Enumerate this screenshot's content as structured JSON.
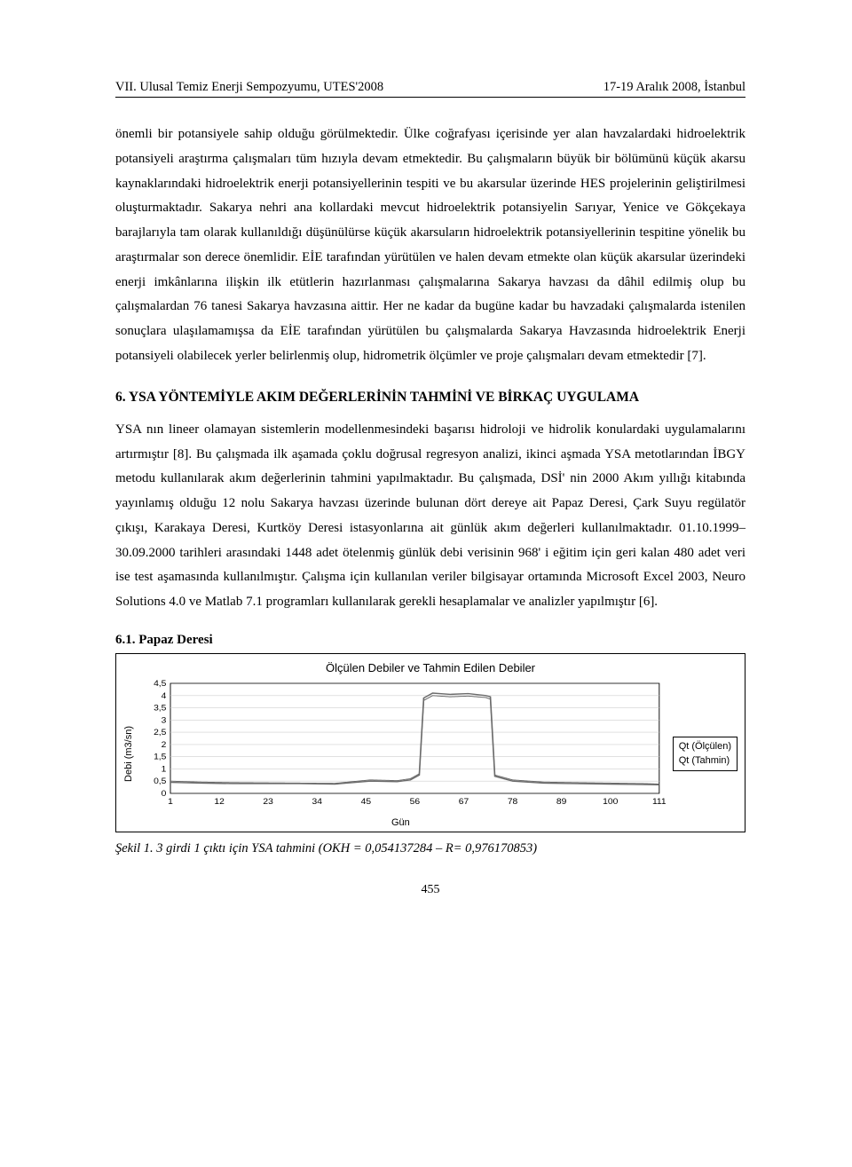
{
  "header": {
    "left": "VII. Ulusal Temiz Enerji Sempozyumu, UTES'2008",
    "right": "17-19 Aralık 2008, İstanbul"
  },
  "paragraph1": "önemli bir potansiyele sahip olduğu görülmektedir. Ülke coğrafyası içerisinde yer alan havzalardaki hidroelektrik potansiyeli araştırma çalışmaları tüm hızıyla devam etmektedir. Bu çalışmaların büyük bir bölümünü küçük akarsu kaynaklarındaki hidroelektrik enerji potansiyellerinin tespiti ve bu akarsular üzerinde HES projelerinin geliştirilmesi oluşturmaktadır. Sakarya nehri ana kollardaki mevcut hidroelektrik potansiyelin Sarıyar, Yenice ve Gökçekaya barajlarıyla tam olarak kullanıldığı düşünülürse küçük akarsuların hidroelektrik potansiyellerinin tespitine yönelik bu araştırmalar son derece önemlidir. EİE tarafından yürütülen ve halen devam etmekte olan küçük akarsular üzerindeki enerji imkânlarına ilişkin ilk etütlerin hazırlanması çalışmalarına Sakarya havzası da dâhil edilmiş olup bu çalışmalardan 76 tanesi Sakarya havzasına aittir. Her ne kadar da bugüne kadar bu havzadaki çalışmalarda istenilen sonuçlara ulaşılamamışsa da EİE tarafından yürütülen bu çalışmalarda Sakarya Havzasında hidroelektrik Enerji potansiyeli olabilecek yerler belirlenmiş olup, hidrometrik ölçümler ve proje çalışmaları devam etmektedir [7].",
  "section6_heading": "6. YSA YÖNTEMİYLE AKIM DEĞERLERİNİN TAHMİNİ VE BİRKAÇ UYGULAMA",
  "paragraph2": "YSA nın lineer olamayan sistemlerin modellenmesindeki başarısı hidroloji ve hidrolik konulardaki uygulamalarını artırmıştır [8]. Bu çalışmada ilk aşamada çoklu doğrusal regresyon analizi, ikinci aşmada YSA metotlarından İBGY metodu kullanılarak akım değerlerinin tahmini yapılmaktadır. Bu çalışmada, DSİ' nin 2000 Akım yıllığı kitabında yayınlamış olduğu 12 nolu Sakarya havzası üzerinde bulunan dört dereye ait Papaz Deresi, Çark Suyu regülatör çıkışı, Karakaya Deresi, Kurtköy Deresi istasyonlarına ait günlük akım değerleri kullanılmaktadır. 01.10.1999–30.09.2000 tarihleri arasındaki 1448 adet ötelenmiş günlük debi verisinin 968' i eğitim için geri kalan 480 adet veri ise test aşamasında kullanılmıştır. Çalışma için kullanılan veriler bilgisayar ortamında Microsoft Excel 2003, Neuro Solutions 4.0 ve Matlab 7.1 programları kullanılarak gerekli hesaplamalar ve analizler yapılmıştır [6].",
  "sub61": "6.1. Papaz Deresi",
  "chart": {
    "type": "line",
    "title": "Ölçülen Debiler ve Tahmin Edilen Debiler",
    "y_label": "Debi (m3/sn)",
    "x_label": "Gün",
    "y_ticks": [
      "0",
      "0,5",
      "1",
      "1,5",
      "2",
      "2,5",
      "3",
      "3,5",
      "4",
      "4,5"
    ],
    "x_ticks": [
      "1",
      "12",
      "23",
      "34",
      "45",
      "56",
      "67",
      "78",
      "89",
      "100",
      "111"
    ],
    "ylim": [
      0,
      4.5
    ],
    "xlim": [
      1,
      111
    ],
    "legend": [
      "Qt (Ölçülen)",
      "Qt (Tahmin)"
    ],
    "line_color": "#6b6b6b",
    "grid_color": "#cfcfcf",
    "background_color": "#ffffff",
    "series_measured": [
      [
        1,
        0.45
      ],
      [
        8,
        0.42
      ],
      [
        15,
        0.4
      ],
      [
        22,
        0.4
      ],
      [
        30,
        0.4
      ],
      [
        38,
        0.38
      ],
      [
        46,
        0.5
      ],
      [
        52,
        0.48
      ],
      [
        55,
        0.55
      ],
      [
        57,
        0.75
      ],
      [
        58,
        3.9
      ],
      [
        60,
        4.1
      ],
      [
        64,
        4.05
      ],
      [
        68,
        4.08
      ],
      [
        72,
        4.0
      ],
      [
        73,
        3.95
      ],
      [
        74,
        0.7
      ],
      [
        78,
        0.5
      ],
      [
        85,
        0.42
      ],
      [
        92,
        0.4
      ],
      [
        100,
        0.38
      ],
      [
        108,
        0.36
      ],
      [
        111,
        0.35
      ]
    ],
    "series_predicted": [
      [
        1,
        0.5
      ],
      [
        8,
        0.46
      ],
      [
        15,
        0.44
      ],
      [
        22,
        0.43
      ],
      [
        30,
        0.42
      ],
      [
        38,
        0.41
      ],
      [
        46,
        0.55
      ],
      [
        52,
        0.52
      ],
      [
        55,
        0.6
      ],
      [
        57,
        0.8
      ],
      [
        58,
        3.8
      ],
      [
        60,
        4.0
      ],
      [
        64,
        3.95
      ],
      [
        68,
        3.98
      ],
      [
        72,
        3.92
      ],
      [
        73,
        3.85
      ],
      [
        74,
        0.75
      ],
      [
        78,
        0.55
      ],
      [
        85,
        0.46
      ],
      [
        92,
        0.44
      ],
      [
        100,
        0.42
      ],
      [
        108,
        0.4
      ],
      [
        111,
        0.38
      ]
    ]
  },
  "caption": "Şekil 1. 3 girdi 1 çıktı için YSA tahmini (OKH = 0,054137284 – R= 0,976170853)",
  "page_number": "455"
}
